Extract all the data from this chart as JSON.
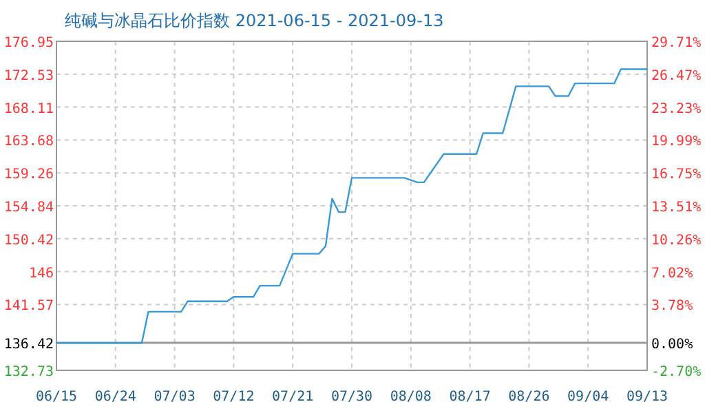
{
  "chart_data": {
    "type": "line",
    "title": "纯碱与冰晶石比价指数 2021-06-15 - 2021-09-13",
    "x": [
      "2021-06-15",
      "2021-06-28",
      "2021-06-29",
      "2021-07-04",
      "2021-07-05",
      "2021-07-11",
      "2021-07-12",
      "2021-07-15",
      "2021-07-16",
      "2021-07-19",
      "2021-07-21",
      "2021-07-25",
      "2021-07-26",
      "2021-07-27",
      "2021-07-28",
      "2021-07-29",
      "2021-07-30",
      "2021-08-07",
      "2021-08-09",
      "2021-08-10",
      "2021-08-13",
      "2021-08-18",
      "2021-08-19",
      "2021-08-22",
      "2021-08-24",
      "2021-08-29",
      "2021-08-30",
      "2021-09-01",
      "2021-09-02",
      "2021-09-08",
      "2021-09-09",
      "2021-09-13"
    ],
    "series": [
      {
        "color": "#3a9ad9",
        "values": [
          136.4,
          136.4,
          140.6,
          140.6,
          142.0,
          142.0,
          142.6,
          142.6,
          144.1,
          144.1,
          148.4,
          148.4,
          149.4,
          155.8,
          154.0,
          154.0,
          158.6,
          158.6,
          158.0,
          158.0,
          161.8,
          161.8,
          164.6,
          164.6,
          170.9,
          170.9,
          169.6,
          169.6,
          171.3,
          171.3,
          173.2,
          173.2
        ]
      }
    ],
    "xlim": [
      "2021-06-15",
      "2021-09-13"
    ],
    "xticks": [
      {
        "value": "2021-06-15",
        "label": "06/15"
      },
      {
        "value": "2021-06-24",
        "label": "06/24"
      },
      {
        "value": "2021-07-03",
        "label": "07/03"
      },
      {
        "value": "2021-07-12",
        "label": "07/12"
      },
      {
        "value": "2021-07-21",
        "label": "07/21"
      },
      {
        "value": "2021-07-30",
        "label": "07/30"
      },
      {
        "value": "2021-08-08",
        "label": "08/08"
      },
      {
        "value": "2021-08-17",
        "label": "08/17"
      },
      {
        "value": "2021-08-26",
        "label": "08/26"
      },
      {
        "value": "2021-09-04",
        "label": "09/04"
      },
      {
        "value": "2021-09-13",
        "label": "09/13"
      }
    ],
    "ylim": [
      132.73,
      176.95
    ],
    "yticks": [
      132.73,
      136.42,
      141.57,
      146,
      150.42,
      154.84,
      159.26,
      163.68,
      168.11,
      172.53,
      176.95
    ],
    "y2lim": [
      -2.7,
      29.71
    ],
    "y2ticks": [
      {
        "value": -2.7,
        "label": "-2.70%"
      },
      {
        "value": 0,
        "label": "0.00%"
      },
      {
        "value": 3.78,
        "label": "3.78%"
      },
      {
        "value": 7.02,
        "label": "7.02%"
      },
      {
        "value": 10.26,
        "label": "10.26%"
      },
      {
        "value": 13.51,
        "label": "13.51%"
      },
      {
        "value": 16.75,
        "label": "16.75%"
      },
      {
        "value": 19.99,
        "label": "19.99%"
      },
      {
        "value": 23.23,
        "label": "23.23%"
      },
      {
        "value": 26.47,
        "label": "26.47%"
      },
      {
        "value": 29.71,
        "label": "29.71%"
      }
    ],
    "ref_lines": [
      {
        "axis": "y",
        "value": 136.42,
        "color": "#999999"
      }
    ],
    "grid": true,
    "marker": "none",
    "line_style": "solid"
  }
}
